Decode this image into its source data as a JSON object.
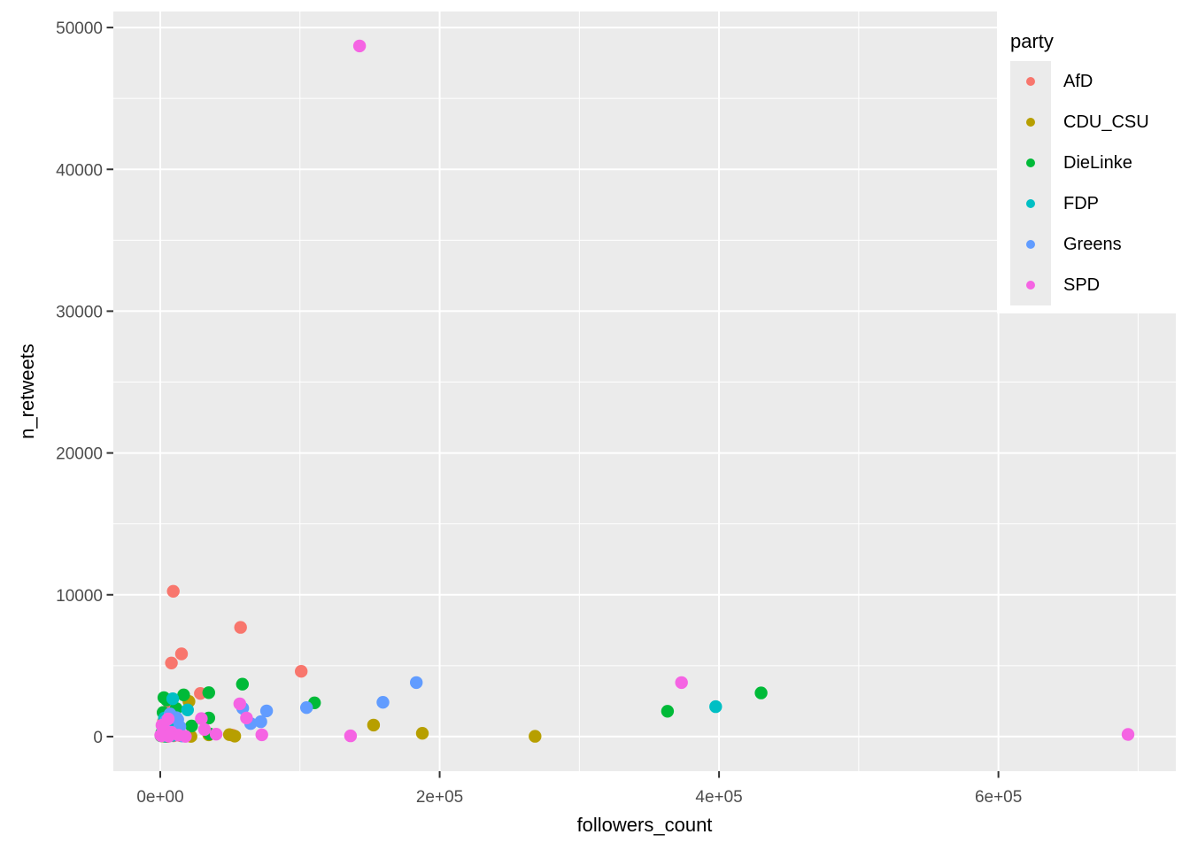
{
  "figure": {
    "background": "#FFFFFF",
    "panel_background": "#EBEBEB",
    "gridline_color": "#FFFFFF",
    "tick_mark_color": "#333333",
    "tick_label_color": "#4D4D4D",
    "axis_title_color": "#000000"
  },
  "legend": {
    "title": "party",
    "key_background": "#EBEBEB"
  },
  "chart_data": {
    "type": "scatter",
    "title": "",
    "xlabel": "followers_count",
    "ylabel": "n_retweets",
    "grid": "on",
    "legend_position": "top-right-inset",
    "xlim": [
      -33600,
      727000
    ],
    "ylim": [
      -2440,
      51130
    ],
    "x_ticks": [
      {
        "value": 0,
        "label": "0e+00"
      },
      {
        "value": 200000,
        "label": "2e+05"
      },
      {
        "value": 400000,
        "label": "4e+05"
      },
      {
        "value": 600000,
        "label": "6e+05"
      }
    ],
    "y_ticks": [
      {
        "value": 0,
        "label": "0"
      },
      {
        "value": 10000,
        "label": "10000"
      },
      {
        "value": 20000,
        "label": "20000"
      },
      {
        "value": 30000,
        "label": "30000"
      },
      {
        "value": 40000,
        "label": "40000"
      },
      {
        "value": 50000,
        "label": "50000"
      }
    ],
    "x_minor": [
      100000,
      300000,
      500000,
      700000
    ],
    "y_minor": [
      5000,
      15000,
      25000,
      35000,
      45000
    ],
    "series": [
      {
        "name": "AfD",
        "color": "#F8766D",
        "points": [
          [
            9300,
            10250
          ],
          [
            57500,
            7700
          ],
          [
            15200,
            5830
          ],
          [
            8000,
            5190
          ],
          [
            100900,
            4600
          ],
          [
            28700,
            3040
          ],
          [
            51600,
            100
          ],
          [
            3600,
            610
          ],
          [
            7200,
            750
          ],
          [
            1800,
            350
          ],
          [
            5000,
            150
          ],
          [
            9500,
            60
          ],
          [
            2500,
            30
          ],
          [
            12000,
            450
          ],
          [
            4200,
            1500
          ],
          [
            6500,
            2000
          ],
          [
            2200,
            1050
          ],
          [
            14000,
            80
          ]
        ]
      },
      {
        "name": "CDU_CSU",
        "color": "#B79F00",
        "points": [
          [
            20500,
            2480
          ],
          [
            152700,
            810
          ],
          [
            34700,
            125
          ],
          [
            49500,
            140
          ],
          [
            53300,
            30
          ],
          [
            187600,
            230
          ],
          [
            268300,
            20
          ],
          [
            6000,
            900
          ],
          [
            12000,
            500
          ],
          [
            3000,
            250
          ],
          [
            9000,
            120
          ],
          [
            15000,
            60
          ],
          [
            1500,
            40
          ],
          [
            22000,
            15
          ],
          [
            5000,
            10
          ]
        ]
      },
      {
        "name": "DieLinke",
        "color": "#00BA38",
        "points": [
          [
            58800,
            3700
          ],
          [
            34700,
            3100
          ],
          [
            16700,
            2940
          ],
          [
            4600,
            2580
          ],
          [
            11400,
            1980
          ],
          [
            34700,
            1310
          ],
          [
            22400,
            750
          ],
          [
            35300,
            190
          ],
          [
            110400,
            2380
          ],
          [
            363100,
            1790
          ],
          [
            430100,
            3080
          ],
          [
            2600,
            2750
          ],
          [
            2000,
            1700
          ],
          [
            6000,
            1400
          ],
          [
            9000,
            1000
          ],
          [
            3500,
            700
          ],
          [
            13000,
            400
          ],
          [
            1000,
            250
          ],
          [
            7000,
            120
          ],
          [
            500,
            60
          ],
          [
            4000,
            20
          ]
        ]
      },
      {
        "name": "FDP",
        "color": "#00BFC4",
        "points": [
          [
            8900,
            2670
          ],
          [
            19500,
            1880
          ],
          [
            397600,
            2110
          ],
          [
            3000,
            1300
          ],
          [
            6000,
            800
          ],
          [
            12000,
            400
          ],
          [
            1500,
            200
          ],
          [
            9000,
            90
          ],
          [
            4500,
            30
          ]
        ]
      },
      {
        "name": "Greens",
        "color": "#619CFF",
        "points": [
          [
            183300,
            3810
          ],
          [
            159400,
            2420
          ],
          [
            104700,
            2040
          ],
          [
            76100,
            1810
          ],
          [
            59000,
            2000
          ],
          [
            64700,
            920
          ],
          [
            72000,
            1050
          ],
          [
            11600,
            1330
          ],
          [
            7000,
            1600
          ],
          [
            4000,
            1100
          ],
          [
            14000,
            700
          ],
          [
            2000,
            450
          ],
          [
            9500,
            250
          ],
          [
            5500,
            100
          ],
          [
            16000,
            40
          ],
          [
            12500,
            1200
          ]
        ]
      },
      {
        "name": "SPD",
        "color": "#F564E3",
        "points": [
          [
            142700,
            48700
          ],
          [
            692800,
            150
          ],
          [
            373100,
            3810
          ],
          [
            56900,
            2310
          ],
          [
            61700,
            1310
          ],
          [
            29400,
            1270
          ],
          [
            31700,
            500
          ],
          [
            40000,
            170
          ],
          [
            136200,
            50
          ],
          [
            5700,
            1250
          ],
          [
            72700,
            125
          ],
          [
            1200,
            800
          ],
          [
            3500,
            450
          ],
          [
            8000,
            300
          ],
          [
            2000,
            150
          ],
          [
            13000,
            100
          ],
          [
            900,
            60
          ],
          [
            6000,
            25
          ],
          [
            18000,
            15
          ],
          [
            300,
            100
          ]
        ]
      }
    ]
  }
}
